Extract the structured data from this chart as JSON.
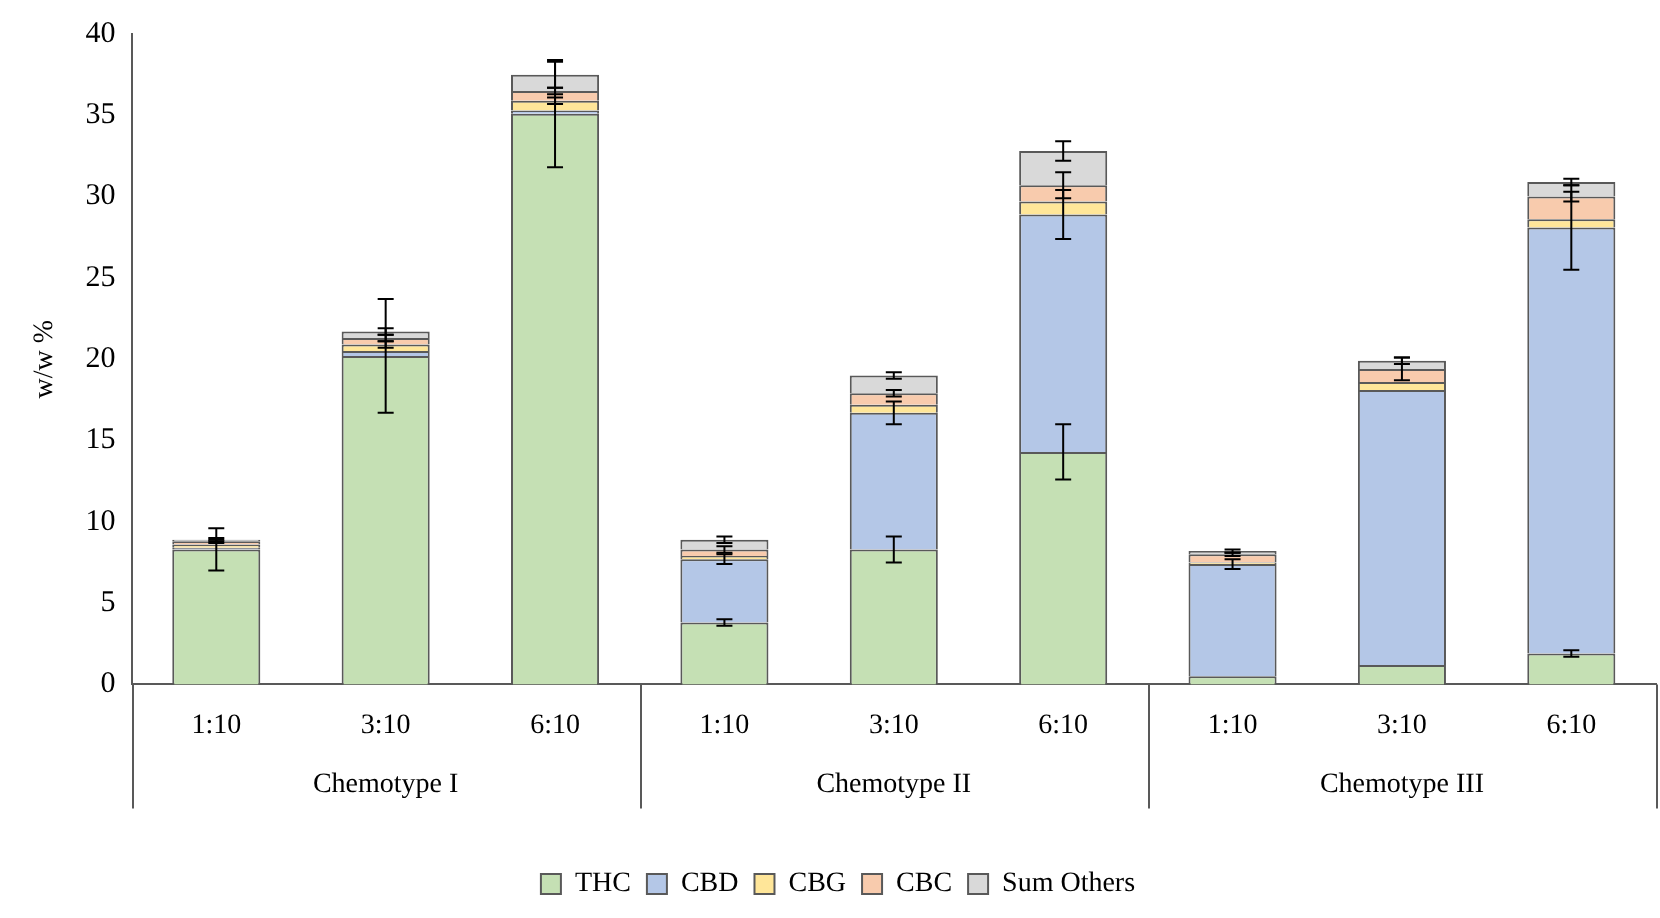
{
  "chart_data": {
    "type": "bar",
    "stacked": true,
    "ylabel": "w/w %",
    "categories": [
      "1:10",
      "3:10",
      "6:10",
      "1:10",
      "3:10",
      "6:10",
      "1:10",
      "3:10",
      "6:10"
    ],
    "annotations": [
      "Chemotype I",
      "Chemotype II",
      "Chemotype III"
    ],
    "series": [
      {
        "name": "THC",
        "color": "#c5e0b4",
        "values": [
          8.3,
          20.2,
          35.1,
          3.8,
          8.3,
          14.3,
          0.5,
          1.2,
          1.9
        ],
        "errors": [
          1.3,
          3.5,
          3.3,
          0.2,
          0.8,
          1.7,
          null,
          null,
          0.2
        ]
      },
      {
        "name": "CBD",
        "color": "#b4c7e7",
        "values": [
          0.1,
          0.3,
          0.2,
          3.9,
          8.4,
          14.6,
          6.9,
          16.9,
          26.2
        ],
        "errors": [
          null,
          null,
          null,
          0.3,
          0.7,
          1.5,
          0.3,
          null,
          2.6
        ]
      },
      {
        "name": "CBG",
        "color": "#ffe699",
        "values": [
          0.2,
          0.4,
          0.6,
          0.2,
          0.5,
          0.8,
          0.1,
          0.5,
          0.5
        ],
        "errors": [
          null,
          0.2,
          0.2,
          null,
          null,
          null,
          null,
          null,
          null
        ]
      },
      {
        "name": "CBC",
        "color": "#f8cbad",
        "values": [
          0.2,
          0.4,
          0.6,
          0.4,
          0.7,
          1.0,
          0.5,
          0.8,
          1.4
        ],
        "errors": [
          0.1,
          0.2,
          0.2,
          0.2,
          0.2,
          0.8,
          0.1,
          0.7,
          0.3
        ]
      },
      {
        "name": "Sum Others",
        "color": "#d9d9d9",
        "values": [
          0.1,
          0.4,
          1.0,
          0.6,
          1.1,
          2.1,
          0.2,
          0.5,
          0.9
        ],
        "errors": [
          0.1,
          0.2,
          0.8,
          0.2,
          0.2,
          0.6,
          0.1,
          0.2,
          0.2
        ]
      }
    ],
    "ylim": [
      0,
      40
    ],
    "yticks": [
      0,
      5,
      10,
      15,
      20,
      25,
      30,
      35,
      40
    ],
    "grid": false,
    "legend": "bottom"
  }
}
